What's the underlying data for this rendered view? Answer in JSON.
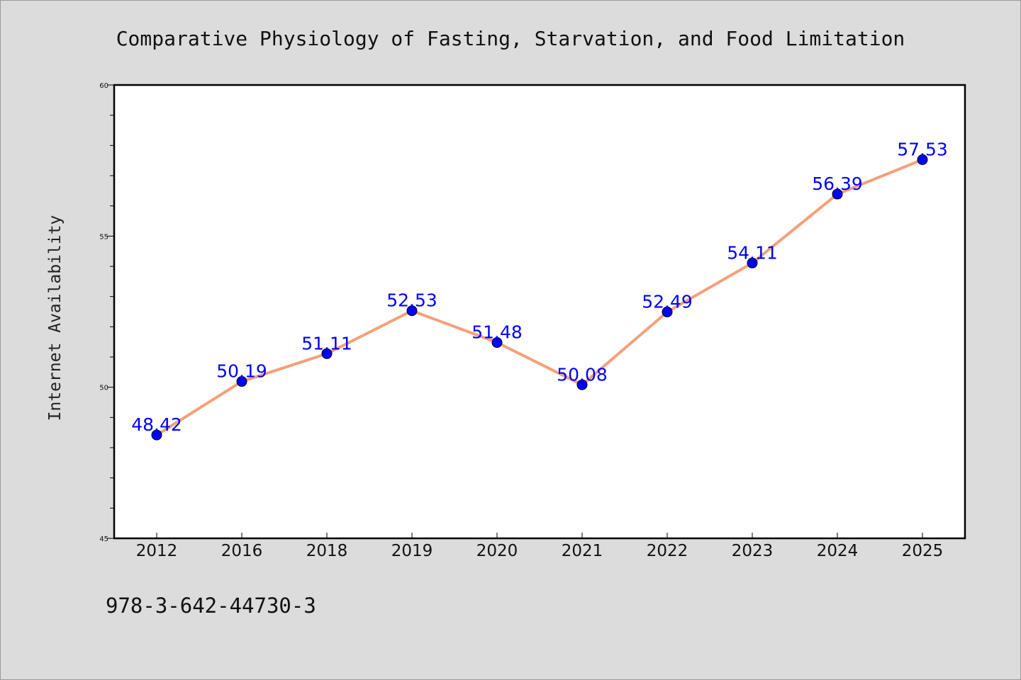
{
  "chart_data": {
    "type": "line",
    "title": "Comparative Physiology of Fasting, Starvation, and Food Limitation",
    "xlabel": "",
    "ylabel": "Internet Availability",
    "categories": [
      "2012",
      "2016",
      "2018",
      "2019",
      "2020",
      "2021",
      "2022",
      "2023",
      "2024",
      "2025"
    ],
    "values": [
      48.42,
      50.19,
      51.11,
      52.53,
      51.48,
      50.08,
      52.49,
      54.11,
      56.39,
      57.53
    ],
    "data_labels": [
      "48.42",
      "50.19",
      "51.11",
      "52.53",
      "51.48",
      "50.08",
      "52.49",
      "54.11",
      "56.39",
      "57.53"
    ],
    "ylim": [
      45,
      60
    ],
    "yticks": [
      "45",
      "50",
      "55",
      "60"
    ],
    "grid": false,
    "legend": "none",
    "colors": {
      "line": "#f4a07a",
      "marker": "#0000ff",
      "data_label": "#0000ff",
      "background": "#dcdcdc",
      "plot_area": "#ffffff"
    }
  },
  "footer": {
    "isbn": "978-3-642-44730-3"
  }
}
